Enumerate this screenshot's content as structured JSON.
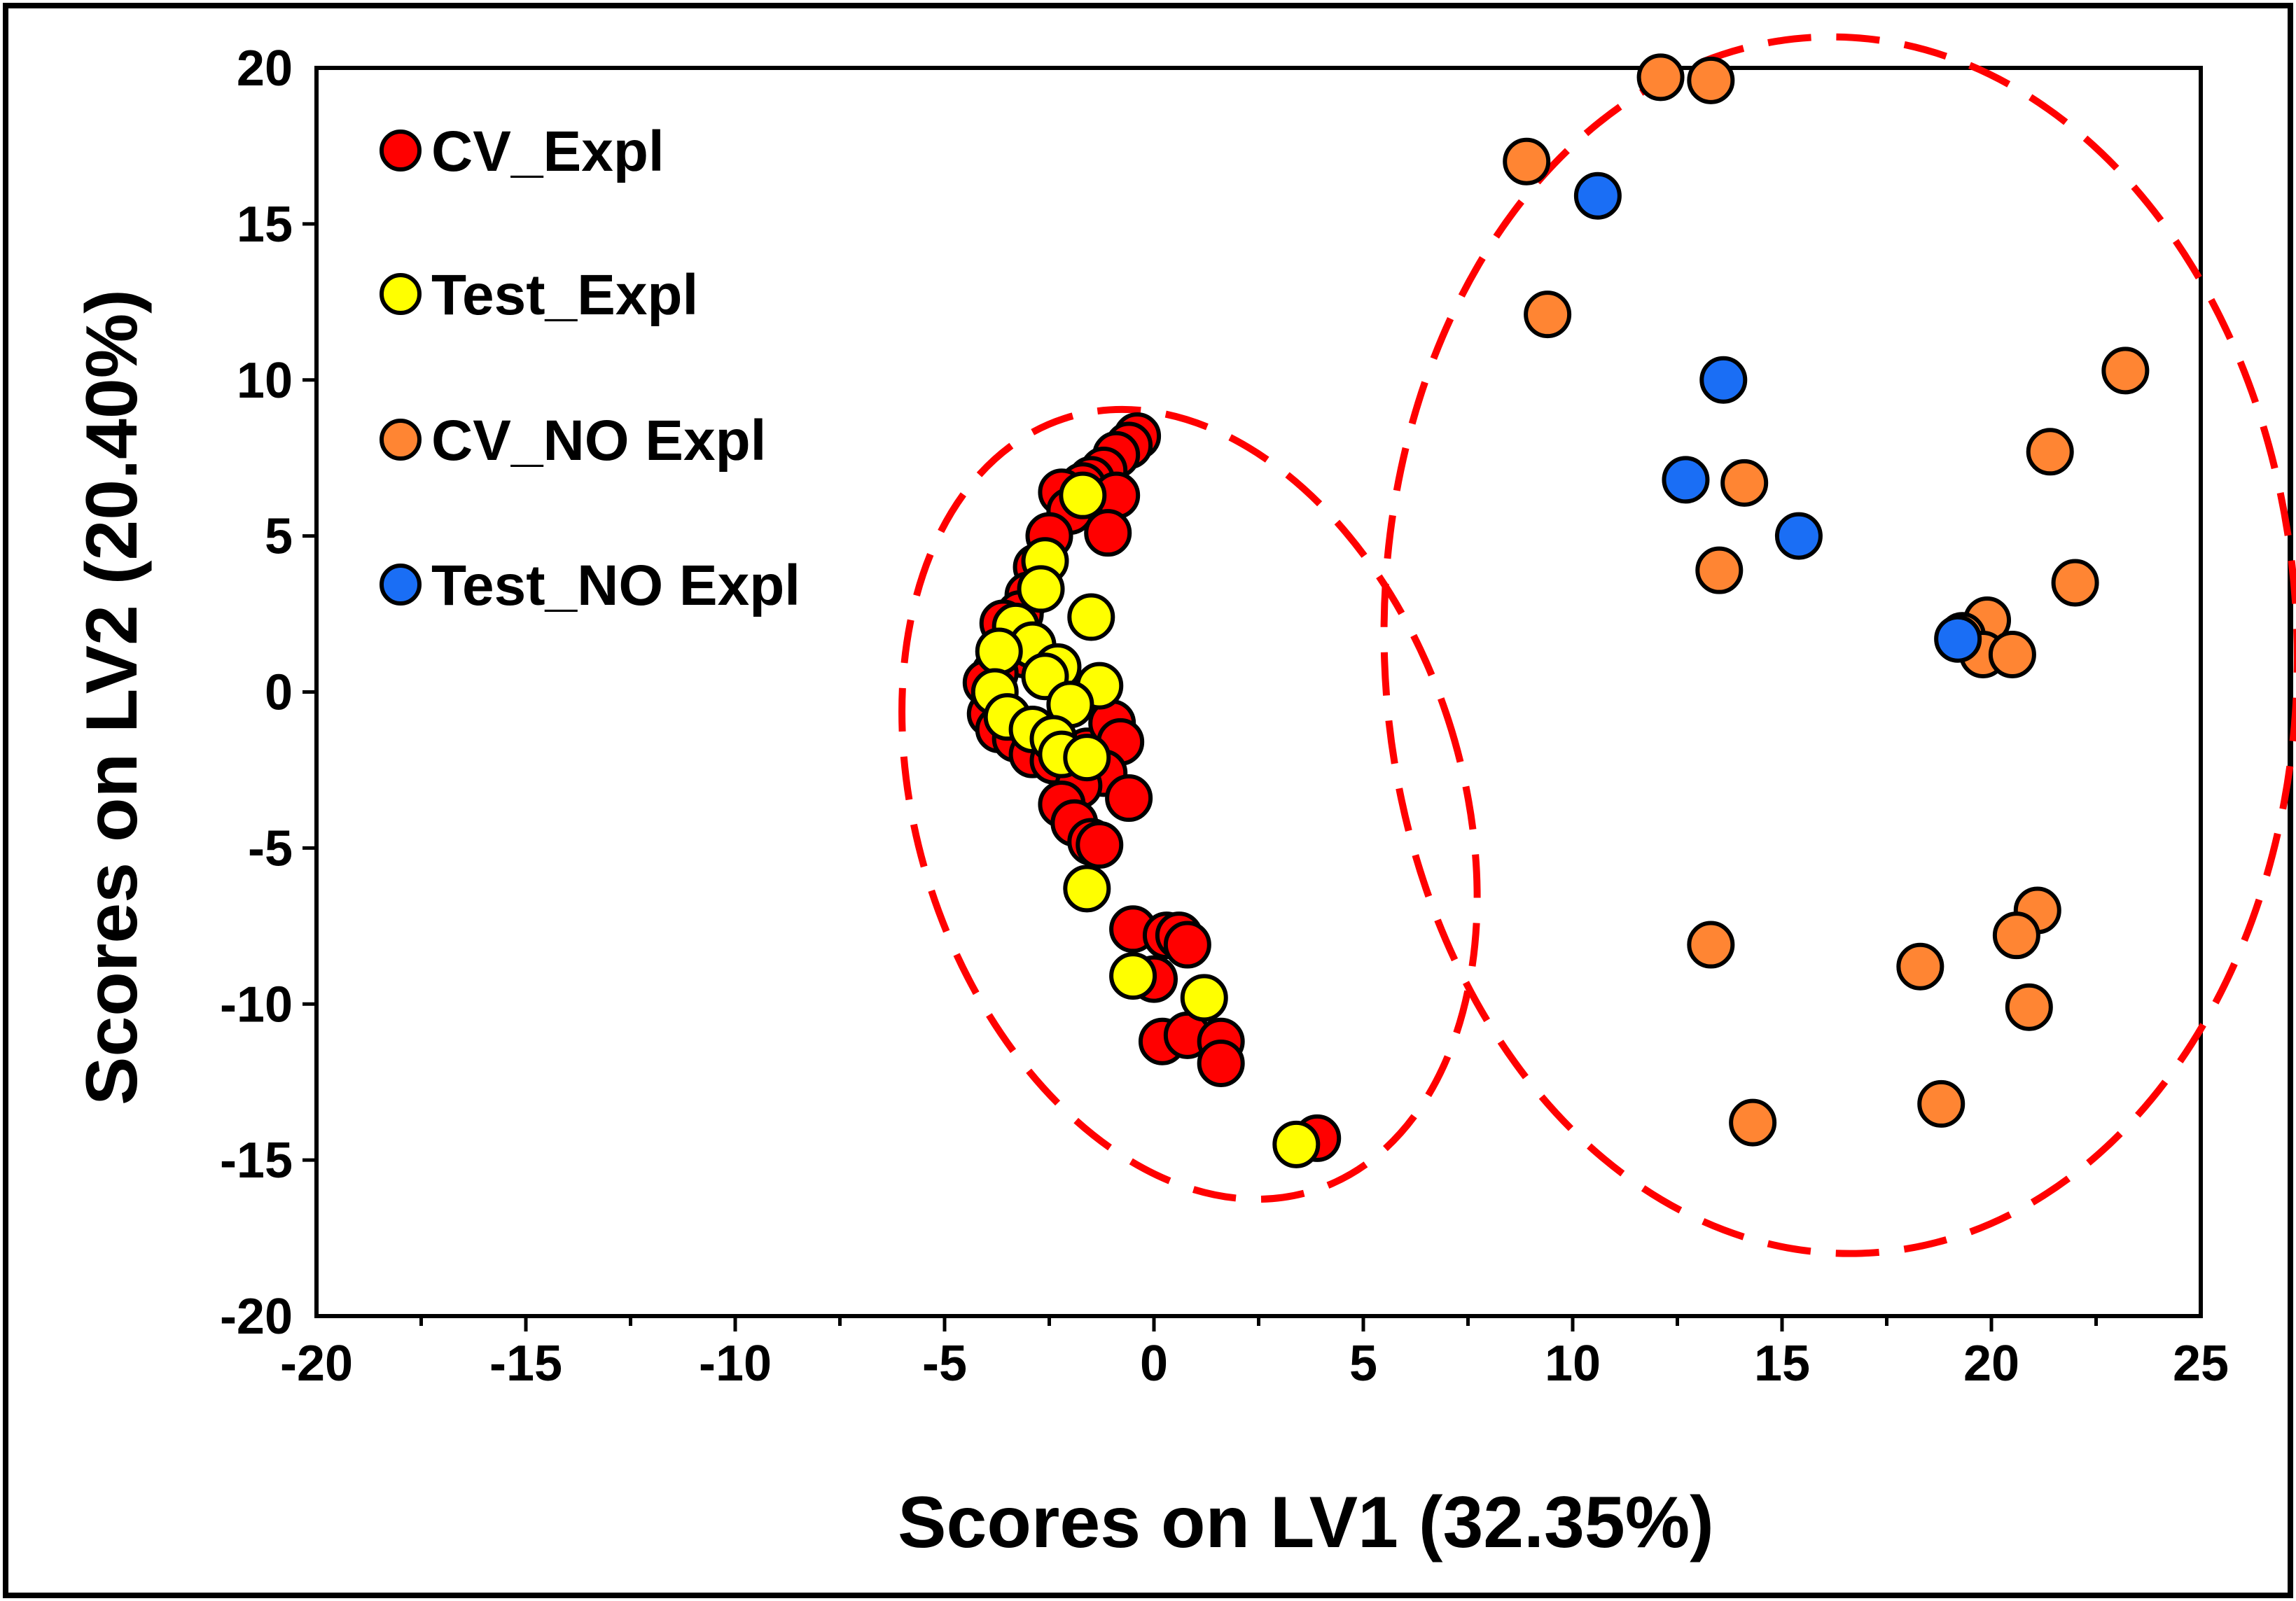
{
  "chart_data": {
    "type": "scatter",
    "xlabel": "Scores on LV1 (32.35%)",
    "ylabel": "Scores on LV2 (20.40%)",
    "xlim": [
      -20,
      25
    ],
    "ylim": [
      -20,
      20
    ],
    "xticks": [
      -20,
      -15,
      -10,
      -5,
      0,
      5,
      10,
      15,
      20,
      25
    ],
    "xtick_labels": [
      "-20",
      "-15",
      "-10",
      "-5",
      "0",
      "5",
      "10",
      "15",
      "20",
      "25"
    ],
    "yticks": [
      -20,
      -15,
      -10,
      -5,
      0,
      5,
      10,
      15,
      20
    ],
    "ytick_labels": [
      "-20",
      "-15",
      "-10",
      "-5",
      "0",
      "5",
      "10",
      "15",
      "20"
    ],
    "legend_position": "top-left",
    "series": [
      {
        "name": "CV_Expl",
        "color": "#ff0000",
        "points": [
          [
            -0.4,
            8.2
          ],
          [
            -0.6,
            7.9
          ],
          [
            -0.9,
            7.6
          ],
          [
            -1.2,
            7.1
          ],
          [
            -1.5,
            6.8
          ],
          [
            -1.7,
            6.6
          ],
          [
            -2.2,
            6.4
          ],
          [
            -0.9,
            6.3
          ],
          [
            -2.0,
            5.8
          ],
          [
            -1.1,
            5.1
          ],
          [
            -2.5,
            5.0
          ],
          [
            -2.8,
            4.0
          ],
          [
            -3.0,
            3.1
          ],
          [
            -3.2,
            2.5
          ],
          [
            -3.6,
            2.2
          ],
          [
            -3.1,
            1.2
          ],
          [
            -3.8,
            0.6
          ],
          [
            -4.0,
            0.3
          ],
          [
            -3.9,
            -0.7
          ],
          [
            -3.7,
            -1.2
          ],
          [
            -3.3,
            -1.5
          ],
          [
            -2.9,
            -2.0
          ],
          [
            -2.4,
            -2.2
          ],
          [
            -1.6,
            -1.9
          ],
          [
            -1.0,
            -1.0
          ],
          [
            -0.8,
            -1.6
          ],
          [
            -1.2,
            -2.6
          ],
          [
            -1.8,
            -3.0
          ],
          [
            -0.6,
            -3.4
          ],
          [
            -2.2,
            -3.6
          ],
          [
            -1.9,
            -4.2
          ],
          [
            -1.5,
            -4.8
          ],
          [
            -1.3,
            -4.9
          ],
          [
            -0.5,
            -7.6
          ],
          [
            0.3,
            -7.8
          ],
          [
            0.6,
            -7.8
          ],
          [
            0.8,
            -8.1
          ],
          [
            0.0,
            -9.2
          ],
          [
            0.2,
            -11.2
          ],
          [
            0.8,
            -11.0
          ],
          [
            1.6,
            -11.2
          ],
          [
            1.6,
            -11.9
          ],
          [
            3.9,
            -14.3
          ]
        ]
      },
      {
        "name": "Test_Expl",
        "color": "#ffff00",
        "points": [
          [
            -1.7,
            6.3
          ],
          [
            -2.6,
            4.2
          ],
          [
            -2.7,
            3.3
          ],
          [
            -1.5,
            2.4
          ],
          [
            -3.3,
            2.1
          ],
          [
            -2.9,
            1.5
          ],
          [
            -3.7,
            1.3
          ],
          [
            -2.3,
            0.8
          ],
          [
            -2.6,
            0.5
          ],
          [
            -3.8,
            0.0
          ],
          [
            -1.3,
            0.2
          ],
          [
            -2.0,
            -0.4
          ],
          [
            -3.5,
            -0.8
          ],
          [
            -2.9,
            -1.2
          ],
          [
            -2.4,
            -1.5
          ],
          [
            -2.2,
            -2.0
          ],
          [
            -1.6,
            -2.1
          ],
          [
            -1.6,
            -6.3
          ],
          [
            -0.5,
            -9.1
          ],
          [
            1.2,
            -9.8
          ],
          [
            3.4,
            -14.5
          ]
        ]
      },
      {
        "name": "CV_NO Expl",
        "color": "#ff8533",
        "points": [
          [
            12.1,
            19.7
          ],
          [
            13.3,
            19.6
          ],
          [
            8.9,
            17.0
          ],
          [
            9.4,
            12.1
          ],
          [
            23.2,
            10.3
          ],
          [
            21.4,
            7.7
          ],
          [
            14.1,
            6.7
          ],
          [
            13.5,
            3.9
          ],
          [
            22.0,
            3.5
          ],
          [
            19.9,
            2.3
          ],
          [
            19.3,
            1.8
          ],
          [
            19.8,
            1.2
          ],
          [
            20.5,
            1.2
          ],
          [
            21.1,
            -7.0
          ],
          [
            20.6,
            -7.8
          ],
          [
            13.3,
            -8.1
          ],
          [
            18.3,
            -8.8
          ],
          [
            20.9,
            -10.1
          ],
          [
            18.8,
            -13.2
          ],
          [
            14.3,
            -13.8
          ]
        ]
      },
      {
        "name": "Test_NO Expl",
        "color": "#1a6ef5",
        "points": [
          [
            10.6,
            15.9
          ],
          [
            13.6,
            10.0
          ],
          [
            12.7,
            6.8
          ],
          [
            15.4,
            5.0
          ],
          [
            19.2,
            1.7
          ]
        ]
      }
    ],
    "annotations": [
      {
        "shape": "dashed-ellipse",
        "color": "#ff0000",
        "center": [
          0.85,
          -3.6
        ],
        "radius_x": 6.5,
        "radius_y": 13.0,
        "rotation_deg": -18,
        "encloses": "Expl samples"
      },
      {
        "shape": "dashed-ellipse",
        "color": "#ff0000",
        "center": [
          16.4,
          1.5
        ],
        "radius_x": 10.9,
        "radius_y": 19.5,
        "rotation_deg": -2,
        "encloses": "NO Expl samples"
      }
    ]
  }
}
